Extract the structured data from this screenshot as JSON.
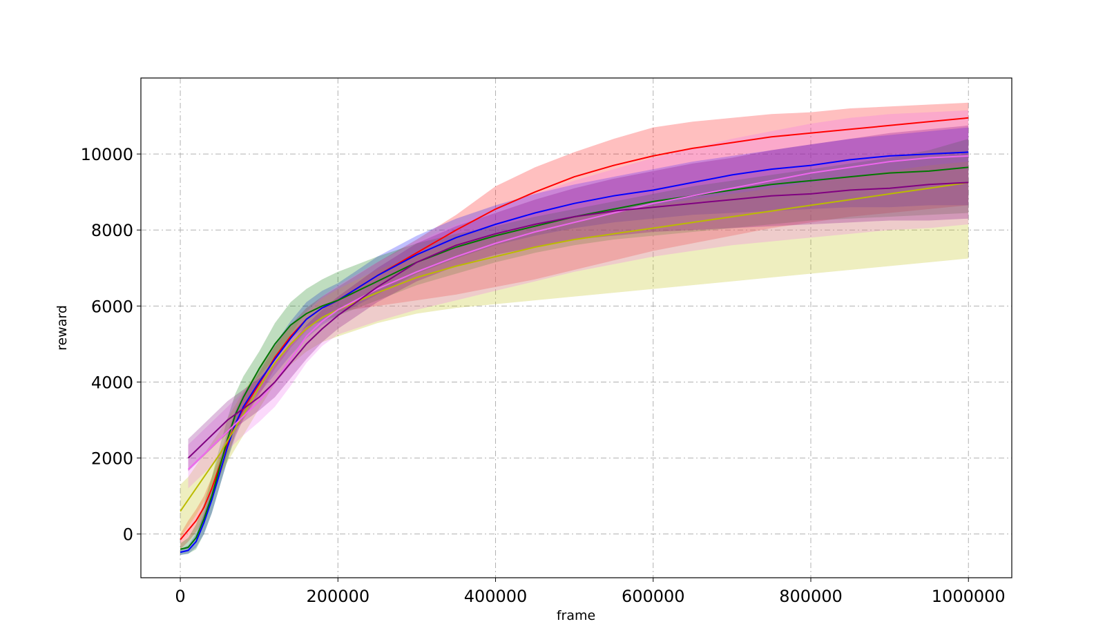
{
  "chart_data": {
    "type": "line",
    "title": "",
    "xlabel": "frame",
    "ylabel": "reward",
    "xlim": [
      -50000,
      1055000
    ],
    "ylim": [
      -1150,
      12000
    ],
    "xticks": [
      0,
      200000,
      400000,
      600000,
      800000,
      1000000
    ],
    "xtick_labels": [
      "0",
      "200000",
      "400000",
      "600000",
      "800000",
      "1000000"
    ],
    "yticks": [
      0,
      2000,
      4000,
      6000,
      8000,
      10000
    ],
    "ytick_labels": [
      "0",
      "2000",
      "4000",
      "6000",
      "8000",
      "10000"
    ],
    "grid": true,
    "legend": "none",
    "x": [
      0,
      10000,
      20000,
      30000,
      40000,
      50000,
      60000,
      70000,
      80000,
      100000,
      120000,
      140000,
      160000,
      180000,
      200000,
      250000,
      300000,
      350000,
      400000,
      450000,
      500000,
      550000,
      600000,
      650000,
      700000,
      750000,
      800000,
      850000,
      900000,
      950000,
      1000000
    ],
    "series": [
      {
        "color": "#ff0000",
        "values": [
          -150,
          100,
          350,
          700,
          1200,
          1800,
          2400,
          2900,
          3300,
          3950,
          4650,
          5200,
          5650,
          5950,
          6150,
          6800,
          7400,
          8000,
          8550,
          9000,
          9400,
          9700,
          9950,
          10150,
          10300,
          10450,
          10550,
          10650,
          10750,
          10850,
          10950
        ],
        "lower": [
          -400,
          -200,
          50,
          400,
          900,
          1500,
          2100,
          2600,
          3000,
          3650,
          4350,
          4900,
          5350,
          5700,
          5850,
          6000,
          6150,
          6300,
          6500,
          6700,
          6950,
          7200,
          7450,
          7650,
          7850,
          8050,
          8200,
          8350,
          8450,
          8550,
          8650
        ],
        "upper": [
          0,
          350,
          650,
          1000,
          1500,
          2100,
          2700,
          3200,
          3600,
          4250,
          4950,
          5500,
          5950,
          6250,
          6500,
          7150,
          7750,
          8400,
          9150,
          9650,
          10050,
          10400,
          10700,
          10850,
          10950,
          11050,
          11100,
          11200,
          11250,
          11300,
          11350
        ]
      },
      {
        "color": "#0000ff",
        "values": [
          -480,
          -430,
          -200,
          300,
          900,
          1600,
          2300,
          2900,
          3350,
          4000,
          4600,
          5150,
          5650,
          5950,
          6150,
          6800,
          7350,
          7800,
          8150,
          8450,
          8700,
          8900,
          9050,
          9250,
          9450,
          9600,
          9700,
          9850,
          9950,
          10000,
          10050
        ],
        "lower": [
          -550,
          -520,
          -350,
          0,
          550,
          1250,
          1950,
          2550,
          3050,
          3700,
          4200,
          4700,
          5150,
          5500,
          5750,
          6300,
          6850,
          7250,
          7600,
          7850,
          8050,
          8200,
          8300,
          8400,
          8450,
          8500,
          8550,
          8600,
          8600,
          8650,
          8650
        ],
        "upper": [
          -400,
          -300,
          0,
          550,
          1200,
          1950,
          2650,
          3250,
          3700,
          4350,
          5000,
          5600,
          6100,
          6400,
          6600,
          7300,
          7850,
          8300,
          8650,
          8950,
          9200,
          9400,
          9600,
          9800,
          9950,
          10100,
          10250,
          10400,
          10500,
          10600,
          10700
        ]
      },
      {
        "color": "#007700",
        "values": [
          -400,
          -350,
          -100,
          400,
          1000,
          1750,
          2500,
          3150,
          3600,
          4350,
          5000,
          5500,
          5800,
          6000,
          6150,
          6650,
          7150,
          7550,
          7850,
          8100,
          8350,
          8550,
          8750,
          8900,
          9050,
          9200,
          9300,
          9400,
          9500,
          9550,
          9650
        ],
        "lower": [
          -550,
          -520,
          -400,
          0,
          550,
          1250,
          1950,
          2650,
          3150,
          3950,
          4650,
          5150,
          5450,
          5600,
          5750,
          6150,
          6550,
          6850,
          7150,
          7400,
          7600,
          7750,
          7850,
          7950,
          8050,
          8150,
          8250,
          8300,
          8350,
          8400,
          8450
        ],
        "upper": [
          -250,
          -100,
          250,
          800,
          1500,
          2300,
          3050,
          3700,
          4150,
          4800,
          5550,
          6100,
          6450,
          6700,
          6900,
          7300,
          7650,
          7900,
          8100,
          8350,
          8550,
          8750,
          8950,
          9150,
          9300,
          9450,
          9600,
          9750,
          9900,
          10100,
          10400
        ]
      },
      {
        "color": "#bbbb00",
        "values": [
          600,
          900,
          1200,
          1500,
          1800,
          2100,
          2450,
          2800,
          3150,
          3850,
          4500,
          5000,
          5400,
          5700,
          5900,
          6350,
          6750,
          7050,
          7300,
          7550,
          7750,
          7900,
          8050,
          8200,
          8350,
          8500,
          8650,
          8800,
          8950,
          9100,
          9250
        ],
        "lower": [
          -100,
          200,
          500,
          850,
          1200,
          1550,
          1900,
          2250,
          2600,
          3300,
          3950,
          4450,
          4800,
          5050,
          5200,
          5550,
          5800,
          5950,
          6050,
          6150,
          6250,
          6350,
          6450,
          6550,
          6650,
          6750,
          6850,
          6950,
          7050,
          7150,
          7250
        ],
        "upper": [
          1300,
          1500,
          1800,
          2100,
          2400,
          2700,
          3050,
          3400,
          3750,
          4350,
          4950,
          5450,
          5850,
          6200,
          6450,
          6950,
          7350,
          7650,
          7900,
          8150,
          8350,
          8500,
          8650,
          8800,
          8950,
          9100,
          9250,
          9400,
          9550,
          9700,
          9800
        ]
      },
      {
        "color": "#ee66ee",
        "values": [
          null,
          1700,
          1900,
          2100,
          2300,
          2500,
          2700,
          2900,
          3100,
          3500,
          4000,
          4600,
          5200,
          5600,
          5900,
          6450,
          6900,
          7300,
          7650,
          7950,
          8200,
          8450,
          8700,
          8900,
          9100,
          9300,
          9500,
          9650,
          9800,
          9900,
          9950
        ],
        "lower": [
          null,
          1200,
          1400,
          1600,
          1800,
          2000,
          2200,
          2400,
          2600,
          2950,
          3350,
          3900,
          4500,
          4950,
          5250,
          5600,
          5900,
          6150,
          6400,
          6650,
          6900,
          7100,
          7300,
          7450,
          7600,
          7700,
          7800,
          7900,
          8000,
          8050,
          8150
        ],
        "upper": [
          null,
          2350,
          2550,
          2750,
          2950,
          3150,
          3350,
          3550,
          3750,
          4150,
          4650,
          5250,
          5850,
          6250,
          6550,
          7150,
          7700,
          8150,
          8600,
          8950,
          9300,
          9600,
          9900,
          10150,
          10400,
          10600,
          10800,
          10950,
          11050,
          11100,
          11150
        ]
      },
      {
        "color": "#800080",
        "values": [
          null,
          2000,
          2200,
          2400,
          2600,
          2800,
          3000,
          3150,
          3300,
          3600,
          4000,
          4500,
          5000,
          5400,
          5750,
          6500,
          7150,
          7600,
          7900,
          8150,
          8350,
          8500,
          8600,
          8700,
          8800,
          8900,
          8950,
          9050,
          9100,
          9200,
          9250
        ],
        "lower": [
          null,
          1650,
          1850,
          2050,
          2250,
          2450,
          2650,
          2800,
          2950,
          3250,
          3600,
          4100,
          4600,
          5050,
          5400,
          6100,
          6650,
          7050,
          7350,
          7550,
          7750,
          7850,
          7950,
          8000,
          8050,
          8100,
          8150,
          8200,
          8250,
          8250,
          8300
        ],
        "upper": [
          null,
          2500,
          2700,
          2900,
          3100,
          3300,
          3500,
          3650,
          3800,
          4100,
          4500,
          5000,
          5500,
          5900,
          6250,
          7000,
          7650,
          8100,
          8450,
          8800,
          9100,
          9350,
          9550,
          9750,
          9900,
          10100,
          10250,
          10400,
          10550,
          10650,
          10750
        ]
      }
    ]
  }
}
